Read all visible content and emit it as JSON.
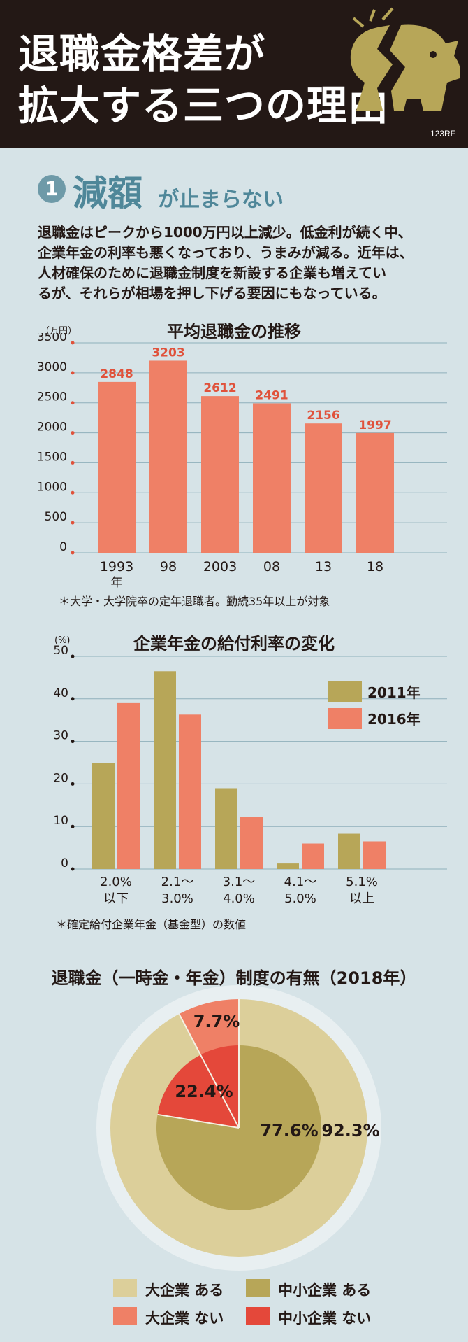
{
  "header": {
    "title_line1": "退職金格差が",
    "title_line2": "拡大する三つの理由",
    "credit": "123RF"
  },
  "section": {
    "number": "1",
    "title": "減額",
    "subtitle": "が止まらない"
  },
  "intro_lines": [
    "退職金はピークから1000万円以上減少。低金利が続く中、",
    "企業年金の利率も悪くなっており、うまみが減る。近年は、",
    "人材確保のために退職金制度を新設する企業も増えてい",
    "るが、それらが相場を押し下げる要因にもなっている。"
  ],
  "colors": {
    "header_bg": "#231815",
    "background": "#d6e3e7",
    "accent_teal": "#4f8799",
    "salmon": "#ef8066",
    "label_red": "#e0523b",
    "olive": "#b7a658",
    "light_olive": "#dccf9a",
    "red": "#e4483a"
  },
  "chart_data": [
    {
      "type": "bar",
      "title": "平均退職金の推移",
      "unit": "（万円）",
      "categories": [
        "1993",
        "98",
        "2003",
        "08",
        "13",
        "18"
      ],
      "category_suffix": "年",
      "values": [
        2848,
        3203,
        2612,
        2491,
        2156,
        1997
      ],
      "ylim": [
        0,
        3500
      ],
      "yticks": [
        0,
        500,
        1000,
        1500,
        2000,
        2500,
        3000,
        3500
      ],
      "grid": true,
      "note": "＊大学・大学院卒の定年退職者。勤続35年以上が対象"
    },
    {
      "type": "bar",
      "title": "企業年金の給付利率の変化",
      "unit": "(%)",
      "categories": [
        "2.0%|以下",
        "2.1〜|3.0%",
        "3.1〜|4.0%",
        "4.1〜|5.0%",
        "5.1%|以上"
      ],
      "series": [
        {
          "name": "2011年",
          "values": [
            25,
            46.5,
            19,
            1.3,
            8.3
          ]
        },
        {
          "name": "2016年",
          "values": [
            39,
            36.3,
            12.2,
            6,
            6.5
          ]
        }
      ],
      "ylim": [
        0,
        50
      ],
      "yticks": [
        0,
        10,
        20,
        30,
        40,
        50
      ],
      "grid": true,
      "legend": "top-right",
      "note": "＊確定給付企業年金（基金型）の数値"
    },
    {
      "type": "pie",
      "title": "退職金（一時金・年金）制度の有無（2018年）",
      "rings": [
        {
          "name": "大企業",
          "labels": [
            "ある",
            "ない"
          ],
          "values": [
            92.3,
            7.7
          ]
        },
        {
          "name": "中小企業",
          "labels": [
            "ある",
            "ない"
          ],
          "values": [
            77.6,
            22.4
          ]
        }
      ],
      "value_labels": {
        "outer_yes": "92.3%",
        "outer_no": "7.7%",
        "inner_yes": "77.6%",
        "inner_no": "22.4%"
      },
      "legend": [
        {
          "label": "大企業 ある",
          "color": "#dccf9a"
        },
        {
          "label": "中小企業 ある",
          "color": "#b7a658"
        },
        {
          "label": "大企業 ない",
          "color": "#ef8066"
        },
        {
          "label": "中小企業 ない",
          "color": "#e4483a"
        }
      ]
    }
  ]
}
